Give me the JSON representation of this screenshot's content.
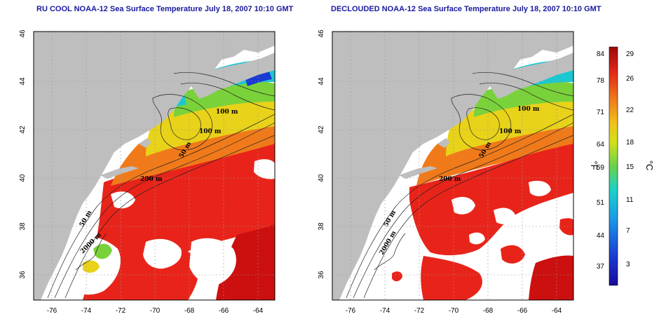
{
  "panels": [
    {
      "title": "RU COOL NOAA-12 Sea Surface Temperature July 18, 2007 10:10 GMT",
      "x_ticks": [
        "-76",
        "-74",
        "-72",
        "-70",
        "-68",
        "-66",
        "-64"
      ],
      "y_ticks": [
        "36",
        "38",
        "40",
        "42",
        "44",
        "46"
      ],
      "contour_labels": [
        "100 m",
        "100 m",
        "50 m",
        "200 m",
        "50 m",
        "2000 m"
      ]
    },
    {
      "title": "DECLOUDED NOAA-12 Sea Surface Temperature July 18, 2007 10:10 GMT",
      "x_ticks": [
        "-76",
        "-74",
        "-72",
        "-70",
        "-68",
        "-66",
        "-64"
      ],
      "y_ticks": [
        "36",
        "38",
        "40",
        "42",
        "44",
        "46"
      ],
      "contour_labels": [
        "100 m",
        "100 m",
        "50 m",
        "200 m",
        "50 m",
        "2000 m"
      ]
    }
  ],
  "colorbar": {
    "fahrenheit_ticks": [
      "84",
      "78",
      "71",
      "64",
      "59",
      "51",
      "44",
      "37"
    ],
    "celsius_ticks": [
      "29",
      "26",
      "22",
      "18",
      "15",
      "11",
      "7",
      "3"
    ],
    "fahrenheit_unit": "°F",
    "celsius_unit": "°C"
  },
  "colors": {
    "land": "#bebebe",
    "warm": "#e8241a",
    "hot": "#cc0f0f",
    "orange": "#f07a1a",
    "yellow": "#e8d21a",
    "green": "#7ad23a",
    "cyan": "#1ac8d2",
    "blue": "#1a3ad2",
    "title": "#1a1aa0"
  }
}
